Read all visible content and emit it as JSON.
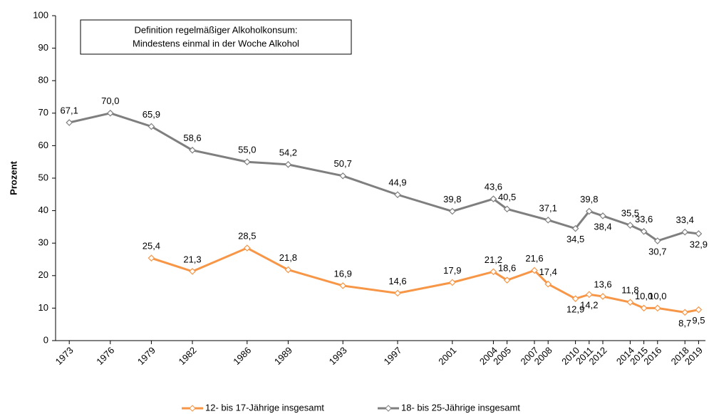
{
  "chart_data": {
    "type": "line",
    "annotation": [
      "Definition regelmäßiger Alkoholkonsum:",
      "Mindestens einmal in der Woche Alkohol"
    ],
    "y_label": "Prozent",
    "x": [
      1973,
      1976,
      1979,
      1982,
      1986,
      1989,
      1993,
      1997,
      2001,
      2004,
      2005,
      2007,
      2008,
      2010,
      2011,
      2012,
      2014,
      2015,
      2016,
      2018,
      2019
    ],
    "xlim": [
      1972,
      2019.5
    ],
    "ylim": [
      0,
      100
    ],
    "yticks": [
      0,
      10,
      20,
      30,
      40,
      50,
      60,
      70,
      80,
      90,
      100
    ],
    "legend": "bottom",
    "series": [
      {
        "name": "12- bis 17-Jährige insgesamt",
        "color": "#f79646",
        "x": [
          1979,
          1982,
          1986,
          1989,
          1993,
          1997,
          2001,
          2004,
          2005,
          2007,
          2008,
          2010,
          2011,
          2012,
          2014,
          2015,
          2016,
          2018,
          2019
        ],
        "values": [
          25.4,
          21.3,
          28.5,
          21.8,
          16.9,
          14.6,
          17.9,
          21.2,
          18.6,
          21.6,
          17.4,
          12.9,
          14.2,
          13.6,
          11.8,
          10.0,
          10.0,
          8.7,
          9.5
        ],
        "value_labels": [
          "25,4",
          "21,3",
          "28,5",
          "21,8",
          "16,9",
          "14,6",
          "17,9",
          "21,2",
          "18,6",
          "21,6",
          "17,4",
          "12,9",
          "14,2",
          "13,6",
          "11,8",
          "10,0",
          "10,0",
          "8,7",
          "9,5"
        ]
      },
      {
        "name": "18- bis 25-Jährige insgesamt",
        "color": "#7f7f7f",
        "x": [
          1973,
          1976,
          1979,
          1982,
          1986,
          1989,
          1993,
          1997,
          2001,
          2004,
          2005,
          2008,
          2010,
          2011,
          2012,
          2014,
          2015,
          2016,
          2018,
          2019
        ],
        "values": [
          67.1,
          70.0,
          65.9,
          58.6,
          55.0,
          54.2,
          50.7,
          44.9,
          39.8,
          43.6,
          40.5,
          37.1,
          34.5,
          39.8,
          38.4,
          35.5,
          33.6,
          30.7,
          33.4,
          32.9
        ],
        "value_labels": [
          "67,1",
          "70,0",
          "65,9",
          "58,6",
          "55,0",
          "54,2",
          "50,7",
          "44,9",
          "39,8",
          "43,6",
          "40,5",
          "37,1",
          "34,5",
          "39,8",
          "38,4",
          "35,5",
          "33,6",
          "30,7",
          "33,4",
          "32,9"
        ]
      }
    ]
  }
}
